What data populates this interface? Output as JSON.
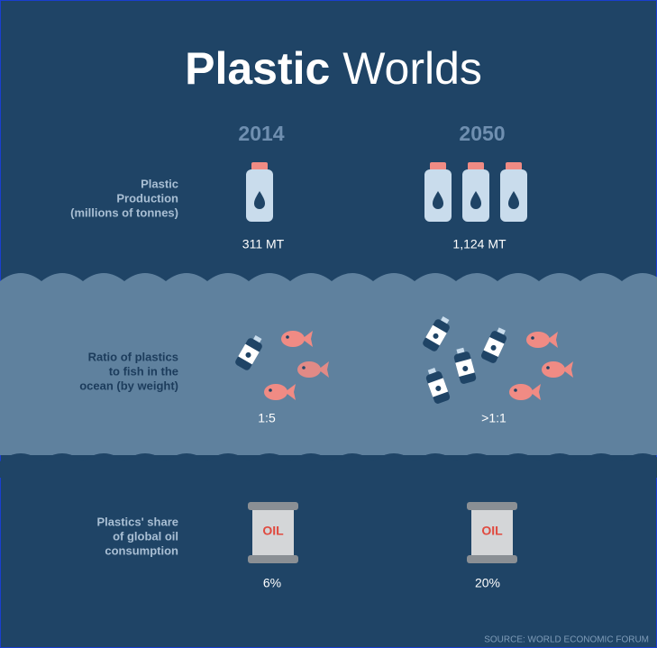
{
  "header": {
    "title_bold": "Plastic",
    "title_light": "Worlds"
  },
  "columns": [
    "2014",
    "2050"
  ],
  "rows": [
    {
      "label_lines": [
        "Plastic",
        "Production",
        "(millions of tonnes)"
      ],
      "values": [
        "311 MT",
        "1,124 MT"
      ]
    },
    {
      "label_lines": [
        "Ratio of plastics",
        "to fish in the",
        "ocean (by weight)"
      ],
      "values": [
        "1:5",
        ">1:1"
      ]
    },
    {
      "label_lines": [
        "Plastics' share",
        "of global oil",
        "consumption"
      ],
      "values": [
        "6%",
        "20%"
      ]
    }
  ],
  "oil_label": "OIL",
  "source": "SOURCE: WORLD ECONOMIC FORUM"
}
